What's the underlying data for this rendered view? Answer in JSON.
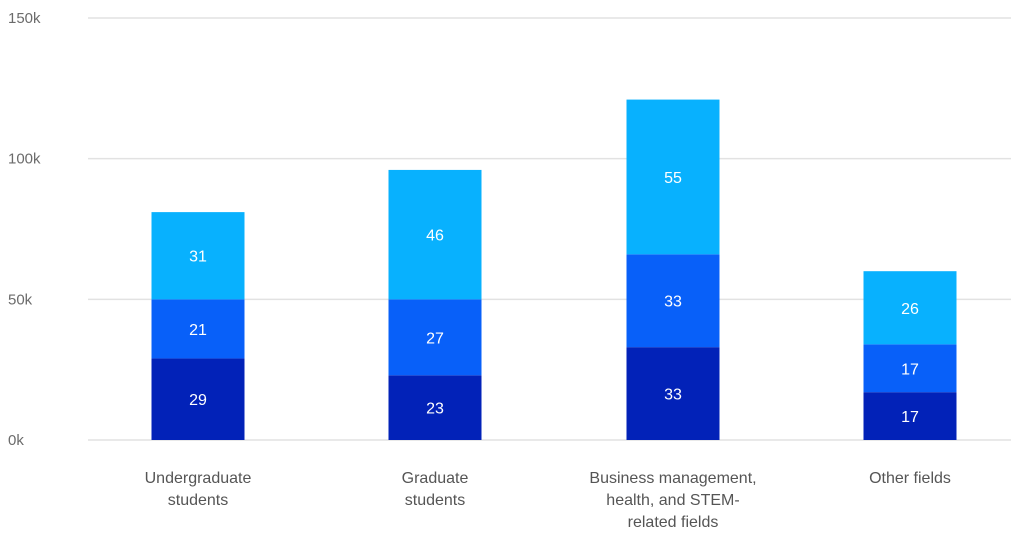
{
  "chart_data": {
    "type": "bar",
    "stacked": true,
    "categories": [
      [
        "Undergraduate",
        "students"
      ],
      [
        "Graduate",
        "students"
      ],
      [
        "Business management,",
        "health, and STEM-",
        "related fields"
      ],
      [
        "Other fields"
      ]
    ],
    "series": [
      {
        "values": [
          29,
          23,
          33,
          17
        ],
        "color": "#0222b8"
      },
      {
        "values": [
          21,
          27,
          33,
          17
        ],
        "color": "#0860f9"
      },
      {
        "values": [
          31,
          46,
          55,
          26
        ],
        "color": "#08b1fe"
      }
    ],
    "yticks": [
      "0k",
      "50k",
      "100k",
      "150k"
    ],
    "ylim": [
      0,
      150
    ],
    "grid": true,
    "legend": "none",
    "title": "",
    "xlabel": "",
    "ylabel": ""
  }
}
